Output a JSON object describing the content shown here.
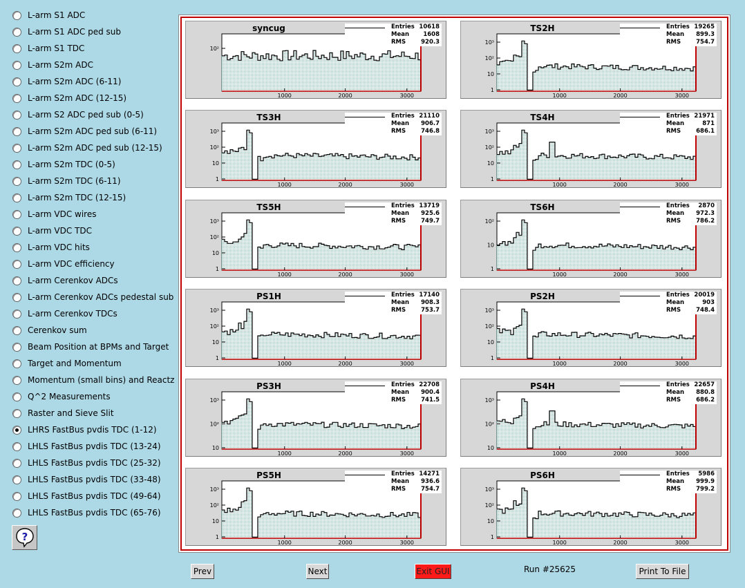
{
  "menu": [
    {
      "label": "L-arm S1 ADC",
      "checked": false
    },
    {
      "label": "L-arm S1 ADC ped sub",
      "checked": false
    },
    {
      "label": "L-arm S1 TDC",
      "checked": false
    },
    {
      "label": "L-arm S2m ADC",
      "checked": false
    },
    {
      "label": "L-arm S2m ADC (6-11)",
      "checked": false
    },
    {
      "label": "L-arm S2m ADC (12-15)",
      "checked": false
    },
    {
      "label": "L-arm S2 ADC ped sub (0-5)",
      "checked": false
    },
    {
      "label": "L-arm S2m ADC ped sub (6-11)",
      "checked": false
    },
    {
      "label": "L-arm S2m ADC ped sub (12-15)",
      "checked": false
    },
    {
      "label": "L-arm S2m TDC (0-5)",
      "checked": false
    },
    {
      "label": "L-arm S2m TDC (6-11)",
      "checked": false
    },
    {
      "label": "L-arm S2m TDC (12-15)",
      "checked": false
    },
    {
      "label": "L-arm VDC wires",
      "checked": false
    },
    {
      "label": "L-arm VDC TDC",
      "checked": false
    },
    {
      "label": "L-arm VDC hits",
      "checked": false
    },
    {
      "label": "L-arm VDC efficiency",
      "checked": false
    },
    {
      "label": "L-arm Cerenkov ADCs",
      "checked": false
    },
    {
      "label": "L-arm Cerenkov ADCs pedestal sub",
      "checked": false
    },
    {
      "label": "L-arm Cerenkov TDCs",
      "checked": false
    },
    {
      "label": "Cerenkov sum",
      "checked": false
    },
    {
      "label": "Beam Position at BPMs and Target",
      "checked": false
    },
    {
      "label": "Target and Momentum",
      "checked": false
    },
    {
      "label": "Momentum (small bins) and Reactz",
      "checked": false
    },
    {
      "label": "Q^2 Measurements",
      "checked": false
    },
    {
      "label": "Raster and Sieve Slit",
      "checked": false
    },
    {
      "label": "LHRS FastBus pvdis TDC (1-12)",
      "checked": true
    },
    {
      "label": "LHLS FastBus pvdis TDC (13-24)",
      "checked": false
    },
    {
      "label": "LHLS FastBus pvdis TDC (25-32)",
      "checked": false
    },
    {
      "label": "LHLS FastBus pvdis TDC (33-48)",
      "checked": false
    },
    {
      "label": "LHLS FastBus pvdis TDC (49-64)",
      "checked": false
    },
    {
      "label": "LHLS FastBus pvdis TDC (65-76)",
      "checked": false
    }
  ],
  "help_icon": "question-mark-help-icon",
  "stat_labels": {
    "entries": "Entries",
    "mean": "Mean",
    "rms": "RMS"
  },
  "histograms": [
    {
      "title": "syncug",
      "entries": "10618",
      "mean": "1608",
      "rms": "920.3",
      "yticks": [
        "10²"
      ],
      "xticks": [
        "1000",
        "2000",
        "3000"
      ]
    },
    {
      "title": "TS2H",
      "entries": "19265",
      "mean": "899.3",
      "rms": "754.7",
      "yticks": [
        "10³",
        "10²",
        "10",
        "1"
      ],
      "xticks": [
        "1000",
        "2000",
        "3000"
      ]
    },
    {
      "title": "TS3H",
      "entries": "21110",
      "mean": "906.7",
      "rms": "746.8",
      "yticks": [
        "10³",
        "10²",
        "10",
        "1"
      ],
      "xticks": [
        "1000",
        "2000",
        "3000"
      ]
    },
    {
      "title": "TS4H",
      "entries": "21971",
      "mean": "871",
      "rms": "686.1",
      "yticks": [
        "10³",
        "10²",
        "10",
        "1"
      ],
      "xticks": [
        "1000",
        "2000",
        "3000"
      ]
    },
    {
      "title": "TS5H",
      "entries": "13719",
      "mean": "925.6",
      "rms": "749.7",
      "yticks": [
        "10³",
        "10²",
        "10",
        "1"
      ],
      "xticks": [
        "1000",
        "2000",
        "3000"
      ]
    },
    {
      "title": "TS6H",
      "entries": "2870",
      "mean": "972.3",
      "rms": "786.2",
      "yticks": [
        "10²",
        "10",
        "1"
      ],
      "xticks": [
        "1000",
        "2000",
        "3000"
      ]
    },
    {
      "title": "PS1H",
      "entries": "17140",
      "mean": "908.3",
      "rms": "753.7",
      "yticks": [
        "10³",
        "10²",
        "10",
        "1"
      ],
      "xticks": [
        "1000",
        "2000",
        "3000"
      ]
    },
    {
      "title": "PS2H",
      "entries": "20019",
      "mean": "903",
      "rms": "748.4",
      "yticks": [
        "10³",
        "10²",
        "10",
        "1"
      ],
      "xticks": [
        "1000",
        "2000",
        "3000"
      ]
    },
    {
      "title": "PS3H",
      "entries": "22708",
      "mean": "900.4",
      "rms": "741.5",
      "yticks": [
        "10³",
        "10²",
        "10"
      ],
      "xticks": [
        "1000",
        "2000",
        "3000"
      ]
    },
    {
      "title": "PS4H",
      "entries": "22657",
      "mean": "880.8",
      "rms": "686.2",
      "yticks": [
        "10³",
        "10²",
        "10"
      ],
      "xticks": [
        "1000",
        "2000",
        "3000"
      ]
    },
    {
      "title": "PS5H",
      "entries": "14271",
      "mean": "936.6",
      "rms": "754.7",
      "yticks": [
        "10³",
        "10²",
        "10",
        "1"
      ],
      "xticks": [
        "1000",
        "2000",
        "3000"
      ]
    },
    {
      "title": "PS6H",
      "entries": "5986",
      "mean": "999.9",
      "rms": "799.2",
      "yticks": [
        "10³",
        "10²",
        "10",
        "1"
      ],
      "xticks": [
        "1000",
        "2000",
        "3000"
      ]
    }
  ],
  "buttons": {
    "prev": "Prev",
    "next": "Next",
    "exit": "Exit GUI",
    "print": "Print To File"
  },
  "run_label": "Run #25625",
  "colors": {
    "background": "#add8e6",
    "exit_button": "#ff1a1a",
    "canvas_border": "#c00000",
    "fill_hatch": "#66a399"
  }
}
